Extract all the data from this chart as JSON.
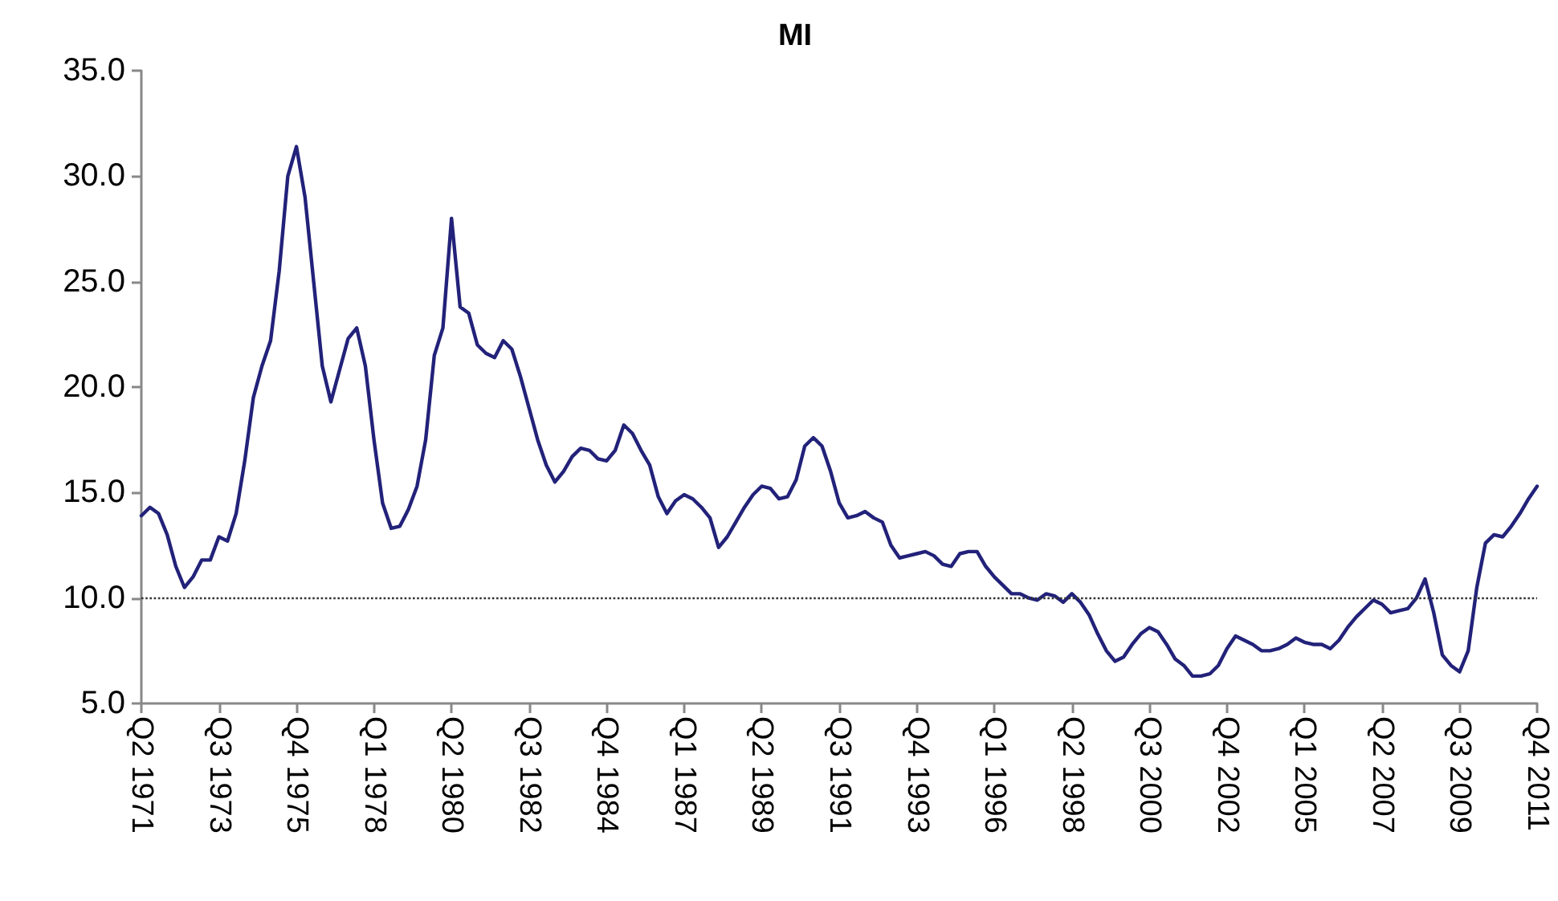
{
  "chart_data": {
    "type": "line",
    "title": "MI",
    "categories": [
      "Q2 1971",
      null,
      null,
      null,
      null,
      null,
      null,
      null,
      null,
      "Q3 1973",
      null,
      null,
      null,
      null,
      null,
      null,
      null,
      null,
      "Q4 1975",
      null,
      null,
      null,
      null,
      null,
      null,
      null,
      null,
      "Q1 1978",
      null,
      null,
      null,
      null,
      null,
      null,
      null,
      null,
      "Q2 1980",
      null,
      null,
      null,
      null,
      null,
      null,
      null,
      null,
      "Q3 1982",
      null,
      null,
      null,
      null,
      null,
      null,
      null,
      null,
      "Q4 1984",
      null,
      null,
      null,
      null,
      null,
      null,
      null,
      null,
      "Q1 1987",
      null,
      null,
      null,
      null,
      null,
      null,
      null,
      null,
      "Q2 1989",
      null,
      null,
      null,
      null,
      null,
      null,
      null,
      null,
      "Q3 1991",
      null,
      null,
      null,
      null,
      null,
      null,
      null,
      null,
      "Q4 1993",
      null,
      null,
      null,
      null,
      null,
      null,
      null,
      null,
      "Q1 1996",
      null,
      null,
      null,
      null,
      null,
      null,
      null,
      null,
      "Q2 1998",
      null,
      null,
      null,
      null,
      null,
      null,
      null,
      null,
      "Q3 2000",
      null,
      null,
      null,
      null,
      null,
      null,
      null,
      null,
      "Q4 2002",
      null,
      null,
      null,
      null,
      null,
      null,
      null,
      null,
      "Q1 2005",
      null,
      null,
      null,
      null,
      null,
      null,
      null,
      null,
      "Q2 2007",
      null,
      null,
      null,
      null,
      null,
      null,
      null,
      null,
      "Q3 2009",
      null,
      null,
      null,
      null,
      null,
      null,
      null,
      null,
      "Q4 2011"
    ],
    "series": [
      {
        "color": "#22227a",
        "values": [
          13.9,
          14.3,
          14.0,
          13.0,
          11.5,
          10.5,
          11.0,
          11.8,
          11.8,
          12.9,
          12.7,
          14.0,
          16.5,
          19.5,
          21.0,
          22.2,
          25.5,
          30.0,
          31.4,
          29.0,
          25.0,
          21.0,
          19.3,
          20.8,
          22.3,
          22.8,
          21.0,
          17.5,
          14.5,
          13.3,
          13.4,
          14.2,
          15.3,
          17.5,
          21.5,
          22.8,
          28.0,
          23.8,
          23.5,
          22.0,
          21.6,
          21.4,
          22.2,
          21.8,
          20.5,
          19.0,
          17.5,
          16.3,
          15.5,
          16.0,
          16.7,
          17.1,
          17.0,
          16.6,
          16.5,
          17.0,
          18.2,
          17.8,
          17.0,
          16.3,
          14.8,
          14.0,
          14.6,
          14.9,
          14.7,
          14.3,
          13.8,
          12.4,
          12.9,
          13.6,
          14.3,
          14.9,
          15.3,
          15.2,
          14.7,
          14.8,
          15.6,
          17.2,
          17.6,
          17.2,
          16.0,
          14.5,
          13.8,
          13.9,
          14.1,
          13.8,
          13.6,
          12.5,
          11.9,
          12.0,
          12.1,
          12.2,
          12.0,
          11.6,
          11.5,
          12.1,
          12.2,
          12.2,
          11.5,
          11.0,
          10.6,
          10.2,
          10.2,
          10.0,
          9.9,
          10.2,
          10.1,
          9.8,
          10.2,
          9.8,
          9.2,
          8.3,
          7.5,
          7.0,
          7.2,
          7.8,
          8.3,
          8.6,
          8.4,
          7.8,
          7.1,
          6.8,
          6.3,
          6.3,
          6.4,
          6.8,
          7.6,
          8.2,
          8.0,
          7.8,
          7.5,
          7.5,
          7.6,
          7.8,
          8.1,
          7.9,
          7.8,
          7.8,
          7.6,
          8.0,
          8.6,
          9.1,
          9.5,
          9.9,
          9.7,
          9.3,
          9.4,
          9.5,
          10.0,
          10.9,
          9.3,
          7.3,
          6.8,
          6.5,
          7.5,
          10.5,
          12.6,
          13.0,
          12.9,
          13.4,
          14.0,
          14.7,
          15.3
        ]
      }
    ],
    "ylim": [
      5,
      35
    ],
    "yticks": [
      {
        "value": 5,
        "label": "5.0"
      },
      {
        "value": 10,
        "label": "10.0"
      },
      {
        "value": 15,
        "label": "15.0"
      },
      {
        "value": 20,
        "label": "20.0"
      },
      {
        "value": 25,
        "label": "25.0"
      },
      {
        "value": 30,
        "label": "30.0"
      },
      {
        "value": 35,
        "label": "35.0"
      }
    ],
    "ref_lines": [
      {
        "axis": "y",
        "value": 10,
        "color": "#333333",
        "line_style": "dotted"
      }
    ],
    "marker": "none",
    "line_style": "solid"
  }
}
